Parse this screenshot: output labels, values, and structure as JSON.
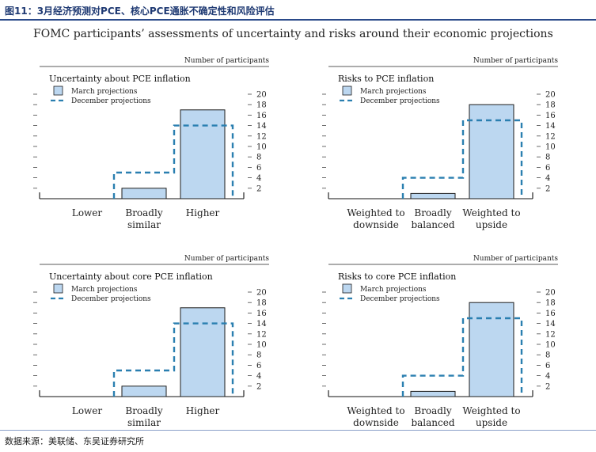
{
  "figure_title": "图11：3月经济预测对PCE、核心PCE通胀不确定性和风险评估",
  "subtitle": "FOMC participants’ assessments of uncertainty and risks around their economic projections",
  "source": "数据来源：美联储、东吴证券研究所",
  "colors": {
    "bar_fill": "#bcd7f0",
    "bar_stroke": "#1d1d1d",
    "dash": "#2a7fb0",
    "header_blue": "#1f3a73"
  },
  "chart_data": [
    {
      "type": "bar",
      "title": "Uncertainty about PCE inflation",
      "ylabel": "Number of participants",
      "ylim": [
        0,
        20
      ],
      "yticks": [
        "2",
        "4",
        "6",
        "8",
        "10",
        "12",
        "14",
        "16",
        "18",
        "20"
      ],
      "legend": [
        "March projections",
        "December projections"
      ],
      "categories": [
        [
          "Lower"
        ],
        [
          "Broadly",
          "similar"
        ],
        [
          "Higher"
        ]
      ],
      "series": [
        {
          "name": "March projections",
          "style": "bar",
          "values": [
            0,
            2,
            17
          ]
        },
        {
          "name": "December projections",
          "style": "dashed",
          "values": [
            0,
            5,
            14
          ]
        }
      ]
    },
    {
      "type": "bar",
      "title": "Risks to PCE inflation",
      "ylabel": "Number of participants",
      "ylim": [
        0,
        20
      ],
      "yticks": [
        "2",
        "4",
        "6",
        "8",
        "10",
        "12",
        "14",
        "16",
        "18",
        "20"
      ],
      "legend": [
        "March projections",
        "December projections"
      ],
      "categories": [
        [
          "Weighted to",
          "downside"
        ],
        [
          "Broadly",
          "balanced"
        ],
        [
          "Weighted to",
          "upside"
        ]
      ],
      "series": [
        {
          "name": "March projections",
          "style": "bar",
          "values": [
            0,
            1,
            18
          ]
        },
        {
          "name": "December projections",
          "style": "dashed",
          "values": [
            0,
            4,
            15
          ]
        }
      ]
    },
    {
      "type": "bar",
      "title": "Uncertainty about core PCE inflation",
      "ylabel": "Number of participants",
      "ylim": [
        0,
        20
      ],
      "yticks": [
        "2",
        "4",
        "6",
        "8",
        "10",
        "12",
        "14",
        "16",
        "18",
        "20"
      ],
      "legend": [
        "March projections",
        "December projections"
      ],
      "categories": [
        [
          "Lower"
        ],
        [
          "Broadly",
          "similar"
        ],
        [
          "Higher"
        ]
      ],
      "series": [
        {
          "name": "March projections",
          "style": "bar",
          "values": [
            0,
            2,
            17
          ]
        },
        {
          "name": "December projections",
          "style": "dashed",
          "values": [
            0,
            5,
            14
          ]
        }
      ]
    },
    {
      "type": "bar",
      "title": "Risks to core PCE inflation",
      "ylabel": "Number of participants",
      "ylim": [
        0,
        20
      ],
      "yticks": [
        "2",
        "4",
        "6",
        "8",
        "10",
        "12",
        "14",
        "16",
        "18",
        "20"
      ],
      "legend": [
        "March projections",
        "December projections"
      ],
      "categories": [
        [
          "Weighted to",
          "downside"
        ],
        [
          "Broadly",
          "balanced"
        ],
        [
          "Weighted to",
          "upside"
        ]
      ],
      "series": [
        {
          "name": "March projections",
          "style": "bar",
          "values": [
            0,
            1,
            18
          ]
        },
        {
          "name": "December projections",
          "style": "dashed",
          "values": [
            0,
            4,
            15
          ]
        }
      ]
    }
  ]
}
